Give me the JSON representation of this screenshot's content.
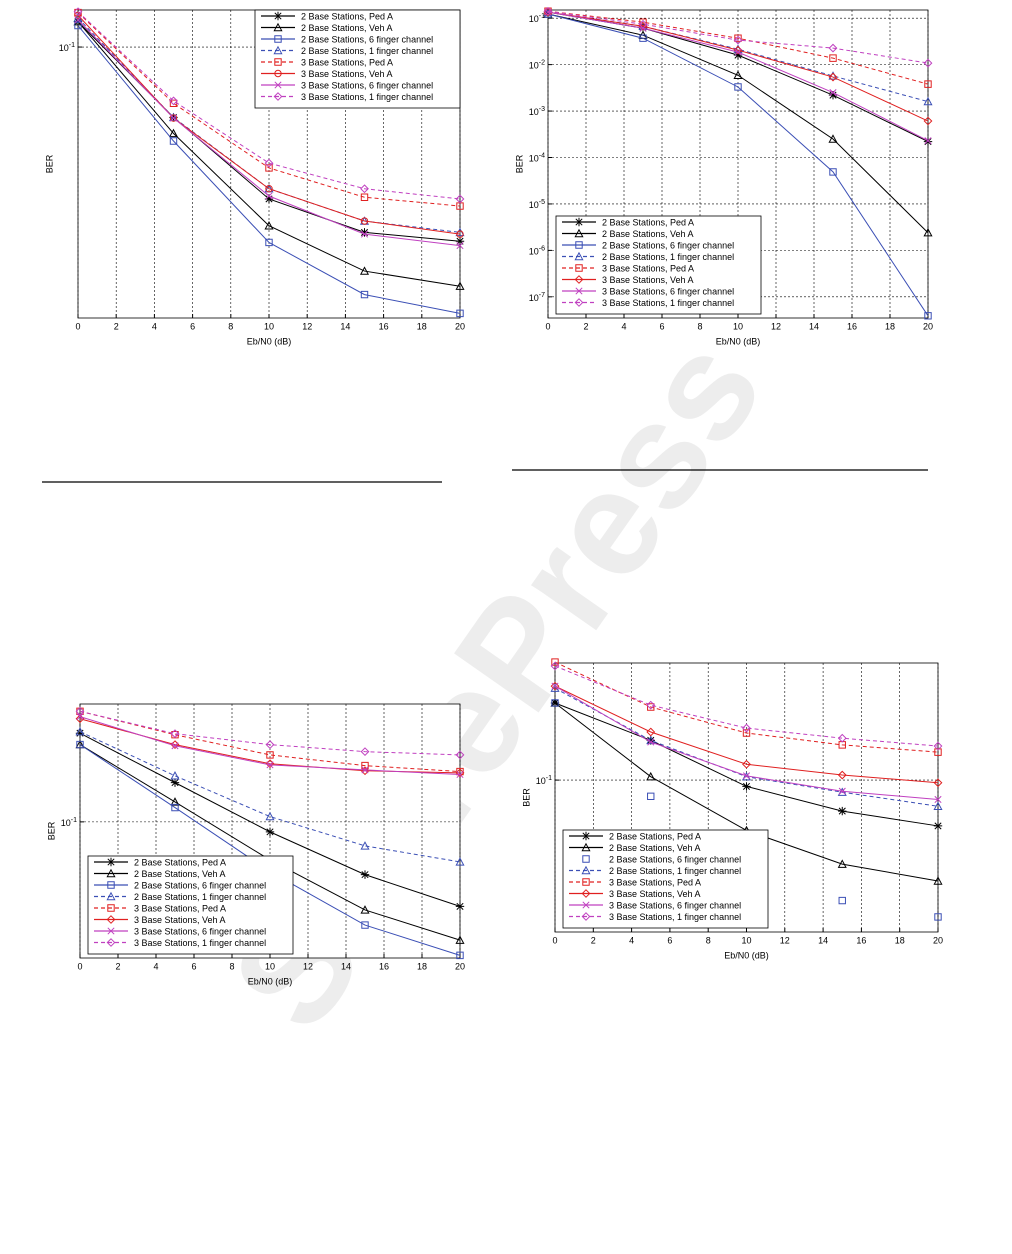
{
  "watermark": "SciTePress",
  "chart_data": [
    {
      "type": "line",
      "log_y": true,
      "grid": true,
      "legend": "upper right",
      "xlabel": "Eb/N0 (dB)",
      "ylabel": "BER",
      "x": [
        0,
        5,
        10,
        15,
        20
      ],
      "xlim": [
        0,
        20
      ],
      "xticks": [
        0,
        2,
        4,
        6,
        8,
        10,
        12,
        14,
        16,
        18,
        20
      ],
      "ylim": [
        0.01,
        0.137
      ],
      "yticks": [
        {
          "value": 0.1,
          "label": "10-1"
        }
      ],
      "series": [
        {
          "name": "2 Base Stations, Ped A",
          "color": "#000000",
          "dash": "solid",
          "marker": "star",
          "values": [
            0.124,
            0.055,
            0.0275,
            0.0207,
            0.0192
          ]
        },
        {
          "name": "2 Base Stations, Veh A",
          "color": "#000000",
          "dash": "solid",
          "marker": "triangle",
          "values": [
            0.124,
            0.048,
            0.0219,
            0.0149,
            0.0131
          ]
        },
        {
          "name": "2 Base Stations, 6 finger channel",
          "color": "#3b4fb5",
          "dash": "solid",
          "marker": "square",
          "values": [
            0.12,
            0.045,
            0.019,
            0.0122,
            0.0104
          ]
        },
        {
          "name": "2 Base Stations, 1 finger channel",
          "color": "#3b4fb5",
          "dash": "dashed",
          "marker": "triangle",
          "values": [
            0.128,
            0.055,
            0.03,
            0.0228,
            0.0207
          ]
        },
        {
          "name": "3 Base Stations, Ped A",
          "color": "#e02020",
          "dash": "dashed",
          "marker": "square",
          "values": [
            0.134,
            0.062,
            0.0358,
            0.0279,
            0.0259
          ]
        },
        {
          "name": "3 Base Stations, Veh A",
          "color": "#e02020",
          "dash": "solid",
          "marker": "circle",
          "values": [
            0.131,
            0.0547,
            0.03,
            0.0228,
            0.0204
          ]
        },
        {
          "name": "3 Base Stations, 6 finger channel",
          "color": "#c040c0",
          "dash": "solid",
          "marker": "x",
          "values": [
            0.126,
            0.0547,
            0.0282,
            0.0204,
            0.0185
          ]
        },
        {
          "name": "3 Base Stations, 1 finger channel",
          "color": "#c040c0",
          "dash": "dashed",
          "marker": "diamond",
          "values": [
            0.135,
            0.0633,
            0.0373,
            0.03,
            0.0275
          ]
        }
      ]
    },
    {
      "type": "line",
      "log_y": true,
      "grid": true,
      "legend": "lower left",
      "xlabel": "Eb/N0 (dB)",
      "ylabel": "BER",
      "x": [
        0,
        5,
        10,
        15,
        20
      ],
      "xlim": [
        0,
        20
      ],
      "xticks": [
        0,
        2,
        4,
        6,
        8,
        10,
        12,
        14,
        16,
        18,
        20
      ],
      "ylim": [
        3.5e-08,
        0.15
      ],
      "yticks": [
        {
          "value": 0.1,
          "label": "10-1"
        },
        {
          "value": 0.01,
          "label": "10-2"
        },
        {
          "value": 0.001,
          "label": "10-3"
        },
        {
          "value": 0.0001,
          "label": "10-4"
        },
        {
          "value": 1e-05,
          "label": "10-5"
        },
        {
          "value": 1e-06,
          "label": "10-6"
        },
        {
          "value": 1e-07,
          "label": "10-7"
        }
      ],
      "series": [
        {
          "name": "2 Base Stations, Ped A",
          "color": "#000000",
          "dash": "solid",
          "marker": "star",
          "values": [
            0.135,
            0.061,
            0.016,
            0.0022,
            0.00022
          ]
        },
        {
          "name": "2 Base Stations, Veh A",
          "color": "#000000",
          "dash": "solid",
          "marker": "triangle",
          "values": [
            0.123,
            0.043,
            0.0059,
            0.00025,
            2.4e-06
          ]
        },
        {
          "name": "2 Base Stations, 6 finger channel",
          "color": "#3b4fb5",
          "dash": "solid",
          "marker": "square",
          "values": [
            0.123,
            0.037,
            0.0033,
            4.9e-05,
            3.9e-08
          ]
        },
        {
          "name": "2 Base Stations, 1 finger channel",
          "color": "#3b4fb5",
          "dash": "dashed",
          "marker": "triangle",
          "values": [
            0.135,
            0.067,
            0.0215,
            0.0057,
            0.0016
          ]
        },
        {
          "name": "3 Base Stations, Ped A",
          "color": "#e02020",
          "dash": "dashed",
          "marker": "square",
          "values": [
            0.141,
            0.082,
            0.037,
            0.0138,
            0.0038
          ]
        },
        {
          "name": "3 Base Stations, Veh A",
          "color": "#e02020",
          "dash": "solid",
          "marker": "diamond",
          "values": [
            0.135,
            0.067,
            0.0205,
            0.0054,
            0.00061
          ]
        },
        {
          "name": "3 Base Stations, 6 finger channel",
          "color": "#c040c0",
          "dash": "solid",
          "marker": "x",
          "values": [
            0.135,
            0.061,
            0.0186,
            0.0025,
            0.00023
          ]
        },
        {
          "name": "3 Base Stations, 1 finger channel",
          "color": "#c040c0",
          "dash": "dashed",
          "marker": "diamond",
          "values": [
            0.141,
            0.074,
            0.0337,
            0.0227,
            0.0108
          ]
        }
      ]
    },
    {
      "type": "line",
      "log_y": true,
      "grid": true,
      "legend": "lower left",
      "xlabel": "Eb/N0 (dB)",
      "ylabel": "BER",
      "x": [
        0,
        5,
        10,
        15,
        20
      ],
      "xlim": [
        0,
        20
      ],
      "xticks": [
        0,
        2,
        4,
        6,
        8,
        10,
        12,
        14,
        16,
        18,
        20
      ],
      "ylim": [
        0.0176,
        0.45
      ],
      "yticks": [
        {
          "value": 0.1,
          "label": "10-1"
        }
      ],
      "series": [
        {
          "name": "2 Base Stations, Ped A",
          "color": "#000000",
          "dash": "solid",
          "marker": "star",
          "values": [
            0.31,
            0.165,
            0.088,
            0.051,
            0.034
          ]
        },
        {
          "name": "2 Base Stations, Veh A",
          "color": "#000000",
          "dash": "solid",
          "marker": "triangle",
          "values": [
            0.268,
            0.129,
            0.0615,
            0.0325,
            0.0221
          ]
        },
        {
          "name": "2 Base Stations, 6 finger channel",
          "color": "#3b4fb5",
          "dash": "solid",
          "marker": "square",
          "values": [
            0.268,
            0.12,
            0.053,
            0.0268,
            0.0182
          ]
        },
        {
          "name": "2 Base Stations, 1 finger channel",
          "color": "#3b4fb5",
          "dash": "dashed",
          "marker": "triangle",
          "values": [
            0.316,
            0.18,
            0.107,
            0.0736,
            0.06
          ]
        },
        {
          "name": "3 Base Stations, Ped A",
          "color": "#e02020",
          "dash": "dashed",
          "marker": "square",
          "values": [
            0.41,
            0.304,
            0.235,
            0.205,
            0.19
          ]
        },
        {
          "name": "3 Base Stations, Veh A",
          "color": "#e02020",
          "dash": "solid",
          "marker": "diamond",
          "values": [
            0.373,
            0.268,
            0.21,
            0.192,
            0.187
          ]
        },
        {
          "name": "3 Base Stations, 6 finger channel",
          "color": "#c040c0",
          "dash": "solid",
          "marker": "x",
          "values": [
            0.383,
            0.264,
            0.207,
            0.194,
            0.183
          ]
        },
        {
          "name": "3 Base Stations, 1 finger channel",
          "color": "#c040c0",
          "dash": "dashed",
          "marker": "diamond",
          "values": [
            0.41,
            0.308,
            0.268,
            0.245,
            0.235
          ]
        }
      ]
    },
    {
      "type": "line",
      "log_y": true,
      "grid": true,
      "legend": "lower left",
      "xlabel": "Eb/N0 (dB)",
      "ylabel": "BER",
      "x": [
        0,
        5,
        10,
        15,
        20
      ],
      "xlim": [
        0,
        20
      ],
      "xticks": [
        0,
        2,
        4,
        6,
        8,
        10,
        12,
        14,
        16,
        18,
        20
      ],
      "ylim": [
        0.0174,
        0.385
      ],
      "yticks": [
        {
          "value": 0.1,
          "label": "10-1"
        }
      ],
      "series": [
        {
          "name": "2 Base Stations, Ped A",
          "color": "#000000",
          "dash": "solid",
          "marker": "star",
          "values": [
            0.243,
            0.158,
            0.093,
            0.07,
            0.059
          ]
        },
        {
          "name": "2 Base Stations, Veh A",
          "color": "#000000",
          "dash": "solid",
          "marker": "triangle",
          "values": [
            0.243,
            0.104,
            0.056,
            0.038,
            0.0313
          ]
        },
        {
          "name": "2 Base Stations, 6 finger channel",
          "color": "#3b4fb5",
          "dash": "none",
          "marker": "square",
          "values": [
            0.243,
            0.083,
            0.043,
            0.025,
            0.0207
          ]
        },
        {
          "name": "2 Base Stations, 1 finger channel",
          "color": "#3b4fb5",
          "dash": "dashed",
          "marker": "triangle",
          "values": [
            0.288,
            0.158,
            0.104,
            0.087,
            0.074
          ]
        },
        {
          "name": "3 Base Stations, Ped A",
          "color": "#e02020",
          "dash": "dashed",
          "marker": "square",
          "values": [
            0.389,
            0.232,
            0.172,
            0.15,
            0.138
          ]
        },
        {
          "name": "3 Base Stations, Veh A",
          "color": "#e02020",
          "dash": "solid",
          "marker": "diamond",
          "values": [
            0.295,
            0.174,
            0.12,
            0.106,
            0.097
          ]
        },
        {
          "name": "3 Base Stations, 6 finger channel",
          "color": "#c040c0",
          "dash": "solid",
          "marker": "x",
          "values": [
            0.295,
            0.155,
            0.105,
            0.088,
            0.08
          ]
        },
        {
          "name": "3 Base Stations, 1 finger channel",
          "color": "#c040c0",
          "dash": "dashed",
          "marker": "diamond",
          "values": [
            0.372,
            0.237,
            0.182,
            0.162,
            0.148
          ]
        }
      ]
    }
  ]
}
